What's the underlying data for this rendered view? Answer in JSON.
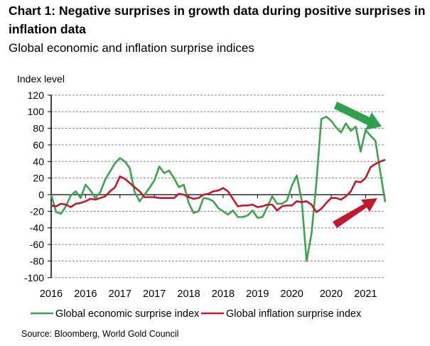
{
  "chart_data": {
    "type": "line",
    "title": "Chart 1: Negative surprises in growth data during positive surprises in inflation data",
    "subtitle": "Global economic and inflation surprise indices",
    "ylabel": "Index level",
    "ylim": [
      -100,
      120
    ],
    "yticks": [
      120,
      100,
      80,
      60,
      40,
      20,
      0,
      -20,
      -40,
      -60,
      -80,
      -100
    ],
    "xtick_labels": [
      "2016",
      "2016",
      "2017",
      "2017",
      "2018",
      "2018",
      "2019",
      "2020",
      "2020",
      "2021"
    ],
    "grid": "horizontal dashed",
    "legend_placement": "bottom",
    "series": [
      {
        "name": "Global economic surprise index",
        "color": "#3ca34f",
        "values": [
          0,
          -21,
          -23,
          -14,
          -1,
          4,
          -4,
          12,
          5,
          -4,
          3,
          18,
          28,
          38,
          44,
          40,
          32,
          3,
          -8,
          0,
          8,
          17,
          34,
          26,
          29,
          20,
          9,
          12,
          -10,
          -22,
          -20,
          -4,
          -5,
          -8,
          -16,
          -20,
          -24,
          -19,
          -27,
          -27,
          -25,
          -19,
          -28,
          -27,
          -15,
          -2,
          -11,
          -11,
          -7,
          11,
          23,
          -7,
          -80,
          -47,
          15,
          91,
          94,
          89,
          81,
          75,
          86,
          77,
          82,
          52,
          78,
          71,
          65,
          27,
          -9
        ]
      },
      {
        "name": "Global inflation surprise index",
        "color": "#c0182c",
        "values": [
          -13,
          -14,
          -11,
          -12,
          -15,
          -11,
          -10,
          -8,
          -5,
          -6,
          -4,
          -2,
          4,
          9,
          22,
          19,
          14,
          9,
          4,
          -3,
          -3,
          -3,
          -4,
          -4,
          -4,
          -4,
          1,
          0,
          -3,
          -5,
          -4,
          0,
          1,
          4,
          5,
          8,
          4,
          -5,
          -14,
          -13,
          -13,
          -12,
          -15,
          -14,
          -12,
          -12,
          -19,
          -14,
          -13,
          -13,
          -8,
          -9,
          -8,
          -12,
          -21,
          -17,
          -10,
          -4,
          -4,
          -6,
          -2,
          4,
          16,
          15,
          20,
          33,
          37,
          40,
          42
        ]
      }
    ],
    "annotations": [
      {
        "type": "arrow",
        "color": "#2ea04f",
        "direction": "down-right"
      },
      {
        "type": "arrow",
        "color": "#c0182c",
        "direction": "up-right"
      }
    ]
  },
  "source": "Source: Bloomberg, World Gold Council"
}
